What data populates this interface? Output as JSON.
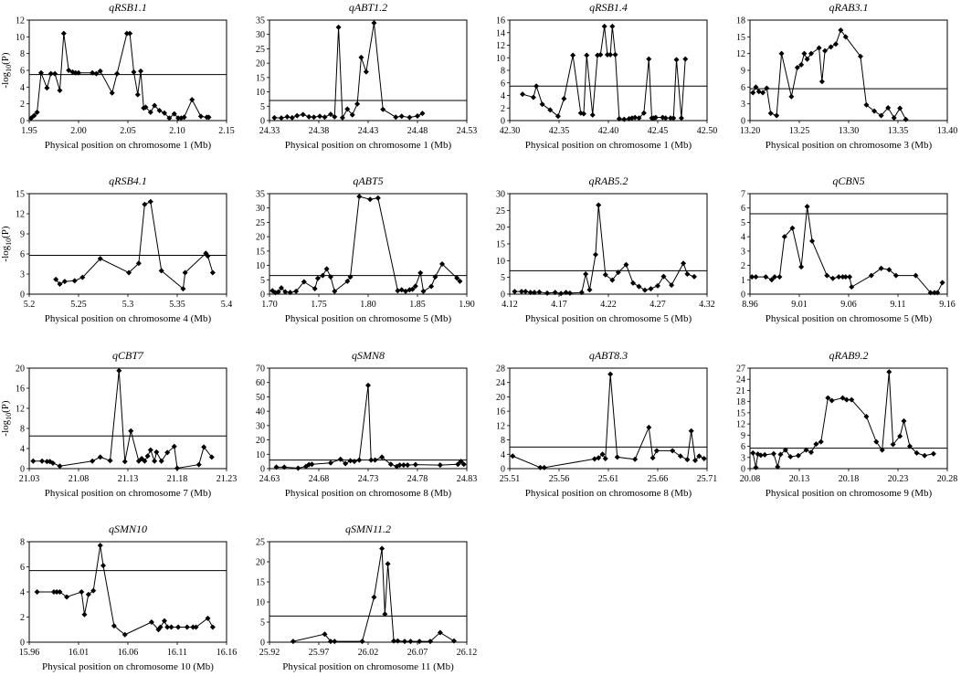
{
  "figure": {
    "ylabel_main": "-log",
    "ylabel_sub": "10",
    "ylabel_end": "(P)"
  },
  "colors": {
    "line": "#000000",
    "marker": "#000000",
    "threshold": "#000000",
    "axis": "#000000"
  },
  "chart_data": [
    {
      "type": "line",
      "title": "qRSB1.1",
      "xlabel": "Physical position on chromosome 1 (Mb)",
      "xlim": [
        1.95,
        2.15
      ],
      "xticks": [
        "1.95",
        "2.00",
        "2.05",
        "2.10",
        "2.15"
      ],
      "ylim": [
        0,
        12
      ],
      "yticks": [
        "0",
        "2",
        "4",
        "6",
        "8",
        "10",
        "12"
      ],
      "threshold": 5.5,
      "show_ylabel": true,
      "x": [
        1.952,
        1.955,
        1.958,
        1.962,
        1.968,
        1.972,
        1.976,
        1.981,
        1.985,
        1.99,
        1.994,
        1.997,
        2.0,
        2.014,
        2.018,
        2.022,
        2.034,
        2.039,
        2.049,
        2.052,
        2.056,
        2.06,
        2.063,
        2.066,
        2.068,
        2.073,
        2.077,
        2.082,
        2.087,
        2.092,
        2.097,
        2.101,
        2.104,
        2.107,
        2.115,
        2.124,
        2.13,
        2.132
      ],
      "y": [
        0.3,
        0.6,
        1.0,
        5.7,
        3.9,
        5.6,
        5.6,
        3.6,
        10.4,
        6.0,
        5.8,
        5.7,
        5.7,
        5.7,
        5.6,
        5.9,
        3.3,
        5.6,
        10.4,
        10.4,
        5.8,
        3.1,
        5.9,
        1.5,
        1.6,
        1.0,
        1.8,
        1.2,
        0.9,
        0.3,
        0.8,
        0.3,
        0.3,
        0.4,
        2.5,
        0.5,
        0.4,
        0.4
      ]
    },
    {
      "type": "line",
      "title": "qABT1.2",
      "xlabel": "Physical position on chromosome 1 (Mb)",
      "xlim": [
        24.33,
        24.53
      ],
      "xticks": [
        "24.33",
        "24.38",
        "24.43",
        "24.48",
        "24.53"
      ],
      "ylim": [
        0,
        35
      ],
      "yticks": [
        "0",
        "5",
        "10",
        "15",
        "20",
        "25",
        "30",
        "35"
      ],
      "threshold": 7.0,
      "show_ylabel": false,
      "x": [
        24.335,
        24.342,
        24.348,
        24.353,
        24.358,
        24.364,
        24.37,
        24.375,
        24.381,
        24.386,
        24.392,
        24.396,
        24.4,
        24.404,
        24.409,
        24.414,
        24.419,
        24.423,
        24.428,
        24.436,
        24.445,
        24.458,
        24.464,
        24.472,
        24.48,
        24.485
      ],
      "y": [
        1.0,
        0.9,
        1.3,
        1.0,
        1.7,
        2.1,
        1.3,
        1.2,
        1.5,
        1.2,
        2.2,
        1.3,
        32.5,
        1.0,
        4.0,
        2.0,
        5.8,
        22.0,
        17.0,
        34.0,
        3.9,
        1.2,
        1.5,
        1.1,
        1.6,
        2.5
      ]
    },
    {
      "type": "line",
      "title": "qRSB1.4",
      "xlabel": "Physical position on chromosome 1 (Mb)",
      "xlim": [
        42.3,
        42.5
      ],
      "xticks": [
        "42.30",
        "42.35",
        "42.40",
        "42.45",
        "42.50"
      ],
      "ylim": [
        0,
        16
      ],
      "yticks": [
        "0",
        "2",
        "4",
        "6",
        "8",
        "10",
        "12",
        "14",
        "16"
      ],
      "threshold": 5.5,
      "show_ylabel": false,
      "x": [
        42.313,
        42.324,
        42.327,
        42.333,
        42.341,
        42.349,
        42.355,
        42.364,
        42.372,
        42.375,
        42.378,
        42.384,
        42.389,
        42.392,
        42.396,
        42.399,
        42.402,
        42.404,
        42.407,
        42.411,
        42.416,
        42.421,
        42.424,
        42.427,
        42.431,
        42.436,
        42.441,
        42.444,
        42.446,
        42.448,
        42.455,
        42.458,
        42.463,
        42.466,
        42.469,
        42.474,
        42.478
      ],
      "y": [
        4.2,
        3.7,
        5.5,
        2.6,
        1.7,
        0.7,
        3.5,
        10.4,
        1.2,
        1.1,
        10.4,
        0.9,
        10.4,
        10.5,
        15.0,
        10.5,
        10.5,
        15.0,
        10.5,
        0.3,
        0.2,
        0.3,
        0.4,
        0.5,
        0.4,
        1.2,
        9.8,
        0.4,
        0.4,
        0.5,
        0.5,
        0.4,
        0.4,
        0.4,
        9.7,
        0.4,
        9.8
      ]
    },
    {
      "type": "line",
      "title": "qRAB3.1",
      "xlabel": "Physical position on chromosome 3 (Mb)",
      "xlim": [
        13.2,
        13.4
      ],
      "xticks": [
        "13.20",
        "13.25",
        "13.30",
        "13.35",
        "13.40"
      ],
      "ylim": [
        0,
        18
      ],
      "yticks": [
        "0",
        "3",
        "6",
        "9",
        "12",
        "15",
        "18"
      ],
      "threshold": 5.7,
      "show_ylabel": false,
      "x": [
        13.203,
        13.206,
        13.209,
        13.213,
        13.217,
        13.221,
        13.227,
        13.232,
        13.242,
        13.248,
        13.252,
        13.255,
        13.258,
        13.262,
        13.27,
        13.273,
        13.276,
        13.282,
        13.287,
        13.292,
        13.297,
        13.312,
        13.318,
        13.326,
        13.333,
        13.34,
        13.346,
        13.352,
        13.358
      ],
      "y": [
        5.0,
        6.0,
        5.2,
        5.0,
        5.8,
        1.3,
        0.9,
        12.0,
        4.3,
        9.5,
        10.0,
        12.0,
        11.0,
        12.0,
        13.0,
        7.0,
        12.5,
        13.2,
        13.7,
        16.2,
        15.0,
        11.5,
        2.8,
        1.7,
        0.9,
        2.3,
        0.5,
        2.2,
        0.2
      ]
    },
    {
      "type": "line",
      "title": "qRSB4.1",
      "xlabel": "Physical position on chromosome 4 (Mb)",
      "xlim": [
        5.2,
        5.4
      ],
      "xticks": [
        "5.2",
        "5.25",
        "5.3",
        "5.35",
        "5.4"
      ],
      "ylim": [
        0,
        15
      ],
      "yticks": [
        "0",
        "3",
        "6",
        "9",
        "12",
        "15"
      ],
      "threshold": 5.8,
      "show_ylabel": true,
      "x": [
        5.227,
        5.231,
        5.236,
        5.246,
        5.254,
        5.272,
        5.301,
        5.311,
        5.317,
        5.323,
        5.334,
        5.356,
        5.358,
        5.379,
        5.381,
        5.386
      ],
      "y": [
        2.2,
        1.5,
        1.9,
        2.0,
        2.5,
        5.3,
        3.2,
        4.6,
        13.4,
        13.8,
        3.5,
        0.8,
        3.2,
        6.1,
        5.7,
        3.2
      ]
    },
    {
      "type": "line",
      "title": "qABT5",
      "xlabel": "Physical position on chromosome 5 (Mb)",
      "xlim": [
        1.7,
        1.9
      ],
      "xticks": [
        "1.70",
        "1.75",
        "1.80",
        "1.85",
        "1.90"
      ],
      "ylim": [
        0,
        35
      ],
      "yticks": [
        "0",
        "5",
        "10",
        "15",
        "20",
        "25",
        "30",
        "35"
      ],
      "threshold": 6.5,
      "show_ylabel": false,
      "x": [
        1.703,
        1.706,
        1.709,
        1.712,
        1.716,
        1.721,
        1.727,
        1.735,
        1.746,
        1.749,
        1.754,
        1.758,
        1.762,
        1.766,
        1.779,
        1.782,
        1.791,
        1.802,
        1.81,
        1.83,
        1.834,
        1.838,
        1.842,
        1.845,
        1.848,
        1.853,
        1.856,
        1.864,
        1.868,
        1.875,
        1.89,
        1.893
      ],
      "y": [
        1.2,
        0.5,
        0.8,
        2.2,
        0.8,
        0.6,
        1.0,
        4.3,
        1.9,
        5.5,
        6.5,
        8.8,
        6.0,
        1.0,
        4.5,
        6.0,
        34.0,
        33.0,
        33.5,
        1.2,
        1.5,
        1.0,
        1.5,
        1.7,
        2.8,
        7.4,
        1.0,
        2.7,
        6.0,
        10.5,
        5.6,
        4.5
      ]
    },
    {
      "type": "line",
      "title": "qRAB5.2",
      "xlabel": "Physical position on chromosome 5 (Mb)",
      "xlim": [
        4.12,
        4.32
      ],
      "xticks": [
        "4.12",
        "4.17",
        "4.22",
        "4.27",
        "4.32"
      ],
      "ylim": [
        0,
        30
      ],
      "yticks": [
        "0",
        "5",
        "10",
        "15",
        "20",
        "25",
        "30"
      ],
      "threshold": 7.0,
      "show_ylabel": false,
      "x": [
        4.125,
        4.132,
        4.136,
        4.141,
        4.145,
        4.15,
        4.158,
        4.166,
        4.172,
        4.177,
        4.181,
        4.193,
        4.197,
        4.201,
        4.207,
        4.21,
        4.217,
        4.224,
        4.23,
        4.238,
        4.245,
        4.251,
        4.257,
        4.263,
        4.27,
        4.276,
        4.284,
        4.296,
        4.3,
        4.307
      ],
      "y": [
        0.8,
        0.8,
        0.8,
        0.5,
        0.5,
        0.6,
        0.3,
        0.5,
        0.2,
        0.5,
        0.3,
        0.5,
        6.0,
        1.3,
        11.8,
        26.6,
        5.8,
        4.2,
        6.5,
        8.8,
        3.3,
        2.3,
        1.2,
        1.6,
        2.5,
        5.3,
        2.7,
        9.2,
        6.0,
        5.2
      ]
    },
    {
      "type": "line",
      "title": "qCBN5",
      "xlabel": "Physical position on chromosome 5 (Mb)",
      "xlim": [
        8.96,
        9.16
      ],
      "xticks": [
        "8.96",
        "9.01",
        "9.06",
        "9.11",
        "9.16"
      ],
      "ylim": [
        0,
        7
      ],
      "yticks": [
        "0",
        "1",
        "2",
        "3",
        "4",
        "5",
        "6",
        "7"
      ],
      "threshold": 5.6,
      "show_ylabel": false,
      "x": [
        8.962,
        8.966,
        8.976,
        8.982,
        8.985,
        8.99,
        8.995,
        9.003,
        9.012,
        9.018,
        9.023,
        9.038,
        9.044,
        9.05,
        9.054,
        9.057,
        9.061,
        9.063,
        9.083,
        9.093,
        9.101,
        9.108,
        9.128,
        9.143,
        9.147,
        9.15,
        9.155
      ],
      "y": [
        1.2,
        1.2,
        1.2,
        1.0,
        1.2,
        1.2,
        4.0,
        4.6,
        1.9,
        6.1,
        3.7,
        1.3,
        1.1,
        1.2,
        1.2,
        1.2,
        1.2,
        0.5,
        1.3,
        1.8,
        1.7,
        1.3,
        1.3,
        0.1,
        0.1,
        0.1,
        0.8
      ]
    },
    {
      "type": "line",
      "title": "qCBT7",
      "xlabel": "Physical position on chromosome 7 (Mb)",
      "xlim": [
        21.03,
        21.23
      ],
      "xticks": [
        "21.03",
        "21.08",
        "21.13",
        "21.18",
        "21.23"
      ],
      "ylim": [
        0,
        20
      ],
      "yticks": [
        "0",
        "4",
        "8",
        "12",
        "16",
        "20"
      ],
      "threshold": 6.5,
      "show_ylabel": true,
      "x": [
        21.034,
        21.043,
        21.048,
        21.051,
        21.054,
        21.061,
        21.094,
        21.102,
        21.112,
        21.121,
        21.127,
        21.133,
        21.141,
        21.144,
        21.147,
        21.15,
        21.153,
        21.157,
        21.159,
        21.164,
        21.17,
        21.177,
        21.18,
        21.202,
        21.207,
        21.215
      ],
      "y": [
        1.5,
        1.5,
        1.4,
        1.4,
        1.1,
        0.5,
        1.5,
        2.3,
        1.6,
        19.5,
        1.4,
        7.5,
        1.5,
        2.0,
        1.5,
        2.5,
        3.7,
        1.5,
        3.3,
        1.5,
        3.2,
        4.4,
        0.1,
        0.8,
        4.3,
        2.3
      ]
    },
    {
      "type": "line",
      "title": "qSMN8",
      "xlabel": "Physical position on chromosome 8 (Mb)",
      "xlim": [
        24.63,
        24.83
      ],
      "xticks": [
        "24.63",
        "24.68",
        "24.73",
        "24.78",
        "24.83"
      ],
      "ylim": [
        0,
        70
      ],
      "yticks": [
        "0",
        "10",
        "20",
        "30",
        "40",
        "50",
        "60",
        "70"
      ],
      "threshold": 6.0,
      "show_ylabel": false,
      "x": [
        24.637,
        24.645,
        24.659,
        24.667,
        24.67,
        24.673,
        24.692,
        24.702,
        24.707,
        24.712,
        24.716,
        24.721,
        24.73,
        24.733,
        24.737,
        24.744,
        24.753,
        24.759,
        24.762,
        24.766,
        24.77,
        24.778,
        24.803,
        24.821,
        24.824,
        24.827
      ],
      "y": [
        1.0,
        1.0,
        0.3,
        1.5,
        2.8,
        3.0,
        4.0,
        6.5,
        3.5,
        5.5,
        5.0,
        6.0,
        58.0,
        6.0,
        6.0,
        8.0,
        3.0,
        1.5,
        2.5,
        2.5,
        2.5,
        2.8,
        2.5,
        3.0,
        5.0,
        3.0
      ]
    },
    {
      "type": "line",
      "title": "qABT8.3",
      "xlabel": "Physical position on chromosome 8 (Mb)",
      "xlim": [
        25.51,
        25.71
      ],
      "xticks": [
        "25.51",
        "25.56",
        "25.61",
        "25.66",
        "25.71"
      ],
      "ylim": [
        0,
        28
      ],
      "yticks": [
        "0",
        "4",
        "8",
        "12",
        "16",
        "20",
        "24",
        "28"
      ],
      "threshold": 6.0,
      "show_ylabel": false,
      "x": [
        25.513,
        25.541,
        25.545,
        25.596,
        25.6,
        25.604,
        25.607,
        25.612,
        25.619,
        25.637,
        25.651,
        25.655,
        25.659,
        25.675,
        25.683,
        25.69,
        25.694,
        25.698,
        25.702,
        25.707
      ],
      "y": [
        3.5,
        0.3,
        0.3,
        2.7,
        3.0,
        4.0,
        2.8,
        26.3,
        3.2,
        2.6,
        11.5,
        3.0,
        5.0,
        5.0,
        3.5,
        2.5,
        10.5,
        2.3,
        3.5,
        2.8
      ]
    },
    {
      "type": "line",
      "title": "qRAB9.2",
      "xlabel": "Physical position on chromosome 9 (Mb)",
      "xlim": [
        20.08,
        20.28
      ],
      "xticks": [
        "20.08",
        "20.13",
        "20.18",
        "20.23",
        "20.28"
      ],
      "ylim": [
        0,
        27
      ],
      "yticks": [
        "0",
        "3",
        "6",
        "9",
        "12",
        "15",
        "18",
        "21",
        "24",
        "27"
      ],
      "threshold": 5.5,
      "show_ylabel": false,
      "x": [
        20.083,
        20.086,
        20.088,
        20.091,
        20.095,
        20.104,
        20.108,
        20.111,
        20.116,
        20.121,
        20.129,
        20.137,
        20.142,
        20.147,
        20.152,
        20.159,
        20.163,
        20.174,
        20.178,
        20.183,
        20.198,
        20.208,
        20.214,
        20.221,
        20.225,
        20.232,
        20.236,
        20.242,
        20.249,
        20.257,
        20.266
      ],
      "y": [
        4.2,
        0.3,
        3.9,
        3.6,
        3.7,
        4.0,
        0.5,
        3.8,
        5.0,
        3.2,
        3.5,
        5.0,
        4.4,
        6.6,
        7.2,
        19.0,
        18.3,
        19.0,
        18.5,
        18.5,
        14.0,
        7.2,
        5.0,
        26.0,
        6.5,
        8.7,
        12.8,
        6.0,
        4.2,
        3.5,
        4.0
      ]
    },
    {
      "type": "line",
      "title": "qSMN10",
      "xlabel": "Physical position on chromosome 10 (Mb)",
      "xlim": [
        15.96,
        16.16
      ],
      "xticks": [
        "15.96",
        "16.01",
        "16.06",
        "16.11",
        "16.16"
      ],
      "ylim": [
        0,
        8
      ],
      "yticks": [
        "0",
        "2",
        "4",
        "6",
        "8"
      ],
      "threshold": 5.7,
      "show_ylabel": false,
      "x": [
        15.968,
        15.985,
        15.988,
        15.991,
        15.998,
        16.013,
        16.016,
        16.02,
        16.025,
        16.032,
        16.035,
        16.046,
        16.057,
        16.084,
        16.091,
        16.093,
        16.097,
        16.1,
        16.104,
        16.111,
        16.12,
        16.126,
        16.129,
        16.141,
        16.146
      ],
      "y": [
        4.0,
        4.0,
        4.0,
        4.0,
        3.6,
        4.0,
        2.2,
        3.8,
        4.1,
        7.7,
        6.1,
        1.3,
        0.6,
        1.6,
        1.0,
        1.2,
        1.7,
        1.2,
        1.2,
        1.2,
        1.2,
        1.2,
        1.2,
        1.9,
        1.2
      ]
    },
    {
      "type": "line",
      "title": "qSMN11.2",
      "xlabel": "Physical position on chromosome 11 (Mb)",
      "xlim": [
        25.92,
        26.12
      ],
      "xticks": [
        "25.92",
        "25.97",
        "26.02",
        "26.07",
        "26.12"
      ],
      "ylim": [
        0,
        25
      ],
      "yticks": [
        "0",
        "5",
        "10",
        "15",
        "20",
        "25"
      ],
      "threshold": 6.5,
      "show_ylabel": false,
      "x": [
        25.944,
        25.976,
        25.982,
        25.986,
        26.014,
        26.026,
        26.034,
        26.037,
        26.04,
        26.046,
        26.05,
        26.057,
        26.063,
        26.072,
        26.083,
        26.093,
        26.107
      ],
      "y": [
        0.2,
        2.0,
        0.2,
        0.2,
        0.2,
        11.2,
        23.3,
        7.0,
        19.5,
        0.3,
        0.3,
        0.2,
        0.2,
        0.2,
        0.2,
        2.4,
        0.3
      ]
    }
  ]
}
